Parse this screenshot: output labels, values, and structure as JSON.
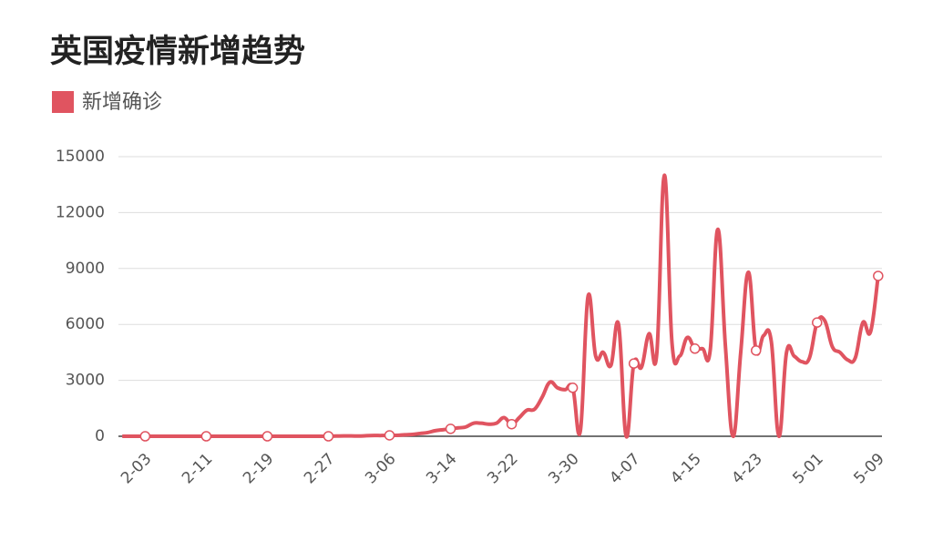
{
  "chart_data": {
    "type": "line",
    "title": "英国疫情新增趋势",
    "categories": [
      null,
      null,
      null,
      "2-03",
      null,
      null,
      null,
      null,
      null,
      null,
      null,
      "2-11",
      null,
      null,
      null,
      null,
      null,
      null,
      null,
      "2-19",
      null,
      null,
      null,
      null,
      null,
      null,
      null,
      "2-27",
      null,
      null,
      null,
      null,
      null,
      null,
      null,
      "3-06",
      null,
      null,
      null,
      null,
      null,
      null,
      null,
      "3-14",
      null,
      null,
      null,
      null,
      null,
      null,
      null,
      "3-22",
      null,
      null,
      null,
      null,
      null,
      null,
      null,
      "3-30",
      null,
      null,
      null,
      null,
      null,
      null,
      null,
      "4-07",
      null,
      null,
      null,
      null,
      null,
      null,
      null,
      "4-15",
      null,
      null,
      null,
      null,
      null,
      null,
      null,
      "4-23",
      null,
      null,
      null,
      null,
      null,
      null,
      null,
      "5-01",
      null,
      null,
      null,
      null,
      null,
      null,
      null,
      "5-09"
    ],
    "series": [
      {
        "name": "新增确诊",
        "color": "#e05460",
        "values": [
          2,
          0,
          0,
          0,
          0,
          0,
          1,
          0,
          0,
          1,
          0,
          0,
          0,
          0,
          0,
          0,
          0,
          0,
          0,
          0,
          0,
          0,
          0,
          0,
          0,
          0,
          0,
          0,
          10,
          20,
          20,
          10,
          30,
          40,
          40,
          50,
          50,
          80,
          100,
          150,
          200,
          300,
          350,
          400,
          450,
          500,
          700,
          700,
          650,
          700,
          1000,
          650,
          1000,
          1400,
          1450,
          2100,
          2900,
          2600,
          2500,
          2600,
          300,
          7500,
          4300,
          4500,
          3800,
          6000,
          0,
          3900,
          3700,
          5500,
          4400,
          14000,
          5000,
          4300,
          5300,
          4700,
          4700,
          4600,
          11100,
          4800,
          0,
          4500,
          8800,
          4600,
          5400,
          5100,
          0,
          4500,
          4300,
          4000,
          4200,
          6100,
          6200,
          4800,
          4500,
          4100,
          4200,
          6100,
          5600,
          8600
        ]
      }
    ],
    "ylim": [
      0,
      15000
    ],
    "yticks": [
      0,
      3000,
      6000,
      9000,
      12000,
      15000
    ],
    "grid": true
  }
}
